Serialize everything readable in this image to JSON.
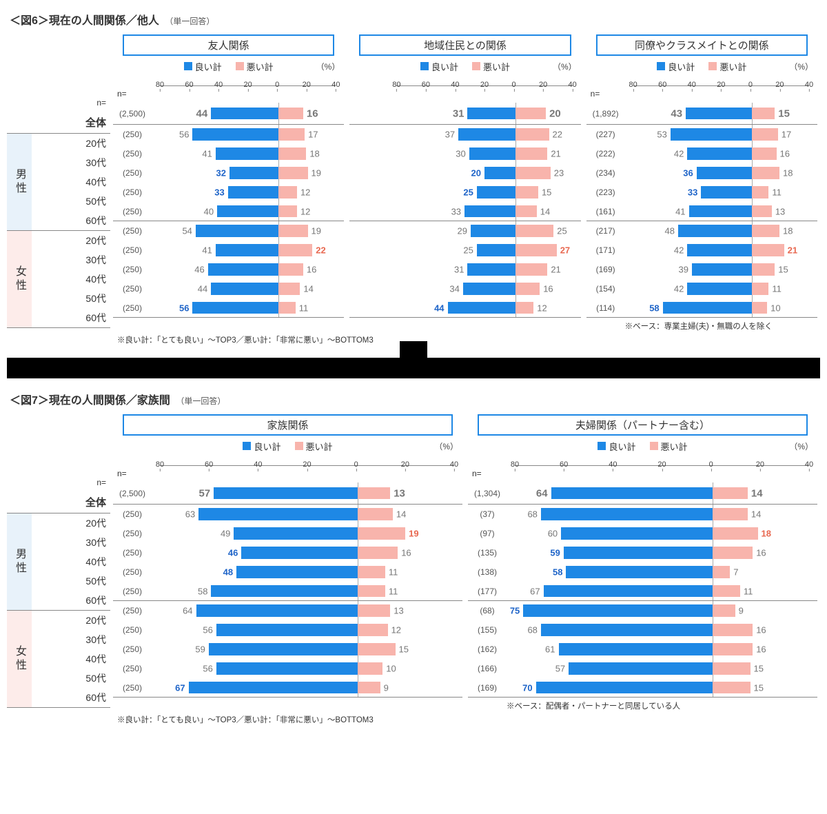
{
  "colors": {
    "good": "#1e88e5",
    "bad": "#f8b4ac",
    "label_gray": "#777",
    "label_blue": "#1e64c8",
    "label_red": "#e86850"
  },
  "axis": {
    "good_max": 80,
    "bad_max": 40,
    "ticks_good": [
      80,
      60,
      40,
      20,
      0
    ],
    "ticks_bad": [
      20,
      40
    ]
  },
  "legend": {
    "good": "良い計",
    "bad": "悪い計",
    "pct": "（%）",
    "n": "n="
  },
  "groups": {
    "total": "全体",
    "male": "男性",
    "female": "女性",
    "ages": [
      "20代",
      "30代",
      "40代",
      "50代",
      "60代"
    ]
  },
  "fig6": {
    "title": "＜図6＞現在の人間関係／他人",
    "sub": "（単一回答）",
    "note": "※良い計：「とても良い」～TOP3／悪い計：「非常に悪い」～BOTTOM3",
    "panels": [
      {
        "title": "友人関係",
        "n_total": "(2,500)",
        "n": [
          "(250)",
          "(250)",
          "(250)",
          "(250)",
          "(250)",
          "(250)",
          "(250)",
          "(250)",
          "(250)",
          "(250)"
        ],
        "rows": [
          {
            "g": 44,
            "b": 16,
            "gs": "bold",
            "bs": "bold"
          },
          {
            "g": 56,
            "b": 17
          },
          {
            "g": 41,
            "b": 18
          },
          {
            "g": 32,
            "b": 19,
            "gs": "blue"
          },
          {
            "g": 33,
            "b": 12,
            "gs": "blue"
          },
          {
            "g": 40,
            "b": 12
          },
          {
            "g": 54,
            "b": 19
          },
          {
            "g": 41,
            "b": 22,
            "bs": "red"
          },
          {
            "g": 46,
            "b": 16
          },
          {
            "g": 44,
            "b": 14
          },
          {
            "g": 56,
            "b": 11,
            "gs": "blue"
          }
        ]
      },
      {
        "title": "地域住民との関係",
        "n_total": "",
        "n": [
          "",
          "",
          "",
          "",
          "",
          "",
          "",
          "",
          "",
          ""
        ],
        "rows": [
          {
            "g": 31,
            "b": 20,
            "gs": "bold",
            "bs": "bold"
          },
          {
            "g": 37,
            "b": 22
          },
          {
            "g": 30,
            "b": 21
          },
          {
            "g": 20,
            "b": 23,
            "gs": "blue"
          },
          {
            "g": 25,
            "b": 15,
            "gs": "blue"
          },
          {
            "g": 33,
            "b": 14
          },
          {
            "g": 29,
            "b": 25
          },
          {
            "g": 25,
            "b": 27,
            "bs": "red"
          },
          {
            "g": 31,
            "b": 21
          },
          {
            "g": 34,
            "b": 16
          },
          {
            "g": 44,
            "b": 12,
            "gs": "blue"
          }
        ]
      },
      {
        "title": "同僚やクラスメイトとの関係",
        "n_total": "(1,892)",
        "n": [
          "(227)",
          "(222)",
          "(234)",
          "(223)",
          "(161)",
          "(217)",
          "(171)",
          "(169)",
          "(154)",
          "(114)"
        ],
        "footnote": "※ベース：専業主婦(夫)・無職の人を除く",
        "show_n_header": true,
        "rows": [
          {
            "g": 43,
            "b": 15,
            "gs": "bold",
            "bs": "bold"
          },
          {
            "g": 53,
            "b": 17
          },
          {
            "g": 42,
            "b": 16
          },
          {
            "g": 36,
            "b": 18,
            "gs": "blue"
          },
          {
            "g": 33,
            "b": 11,
            "gs": "blue"
          },
          {
            "g": 41,
            "b": 13
          },
          {
            "g": 48,
            "b": 18
          },
          {
            "g": 42,
            "b": 21,
            "bs": "red"
          },
          {
            "g": 39,
            "b": 15
          },
          {
            "g": 42,
            "b": 11
          },
          {
            "g": 58,
            "b": 10,
            "gs": "blue"
          }
        ]
      }
    ]
  },
  "fig7": {
    "title": "＜図7＞現在の人間関係／家族間",
    "sub": "（単一回答）",
    "note": "※良い計：「とても良い」～TOP3／悪い計：「非常に悪い」～BOTTOM3",
    "panels": [
      {
        "title": "家族関係",
        "n_total": "(2,500)",
        "n": [
          "(250)",
          "(250)",
          "(250)",
          "(250)",
          "(250)",
          "(250)",
          "(250)",
          "(250)",
          "(250)",
          "(250)"
        ],
        "rows": [
          {
            "g": 57,
            "b": 13,
            "gs": "bold",
            "bs": "bold"
          },
          {
            "g": 63,
            "b": 14
          },
          {
            "g": 49,
            "b": 19,
            "bs": "red"
          },
          {
            "g": 46,
            "b": 16,
            "gs": "blue"
          },
          {
            "g": 48,
            "b": 11,
            "gs": "blue"
          },
          {
            "g": 58,
            "b": 11
          },
          {
            "g": 64,
            "b": 13
          },
          {
            "g": 56,
            "b": 12
          },
          {
            "g": 59,
            "b": 15
          },
          {
            "g": 56,
            "b": 10
          },
          {
            "g": 67,
            "b": 9,
            "gs": "blue"
          }
        ]
      },
      {
        "title": "夫婦関係（パートナー含む）",
        "n_total": "(1,304)",
        "n": [
          "(37)",
          "(97)",
          "(135)",
          "(138)",
          "(177)",
          "(68)",
          "(155)",
          "(162)",
          "(166)",
          "(169)"
        ],
        "footnote": "※ベース：配偶者・パートナーと同居している人",
        "show_n_header": true,
        "rows": [
          {
            "g": 64,
            "b": 14,
            "gs": "bold",
            "bs": "bold"
          },
          {
            "g": 68,
            "b": 14
          },
          {
            "g": 60,
            "b": 18,
            "bs": "red"
          },
          {
            "g": 59,
            "b": 16,
            "gs": "blue"
          },
          {
            "g": 58,
            "b": 7,
            "gs": "blue"
          },
          {
            "g": 67,
            "b": 11
          },
          {
            "g": 75,
            "b": 9,
            "gs": "blue"
          },
          {
            "g": 68,
            "b": 16
          },
          {
            "g": 61,
            "b": 16
          },
          {
            "g": 57,
            "b": 15
          },
          {
            "g": 70,
            "b": 15,
            "gs": "blue"
          }
        ]
      }
    ]
  }
}
